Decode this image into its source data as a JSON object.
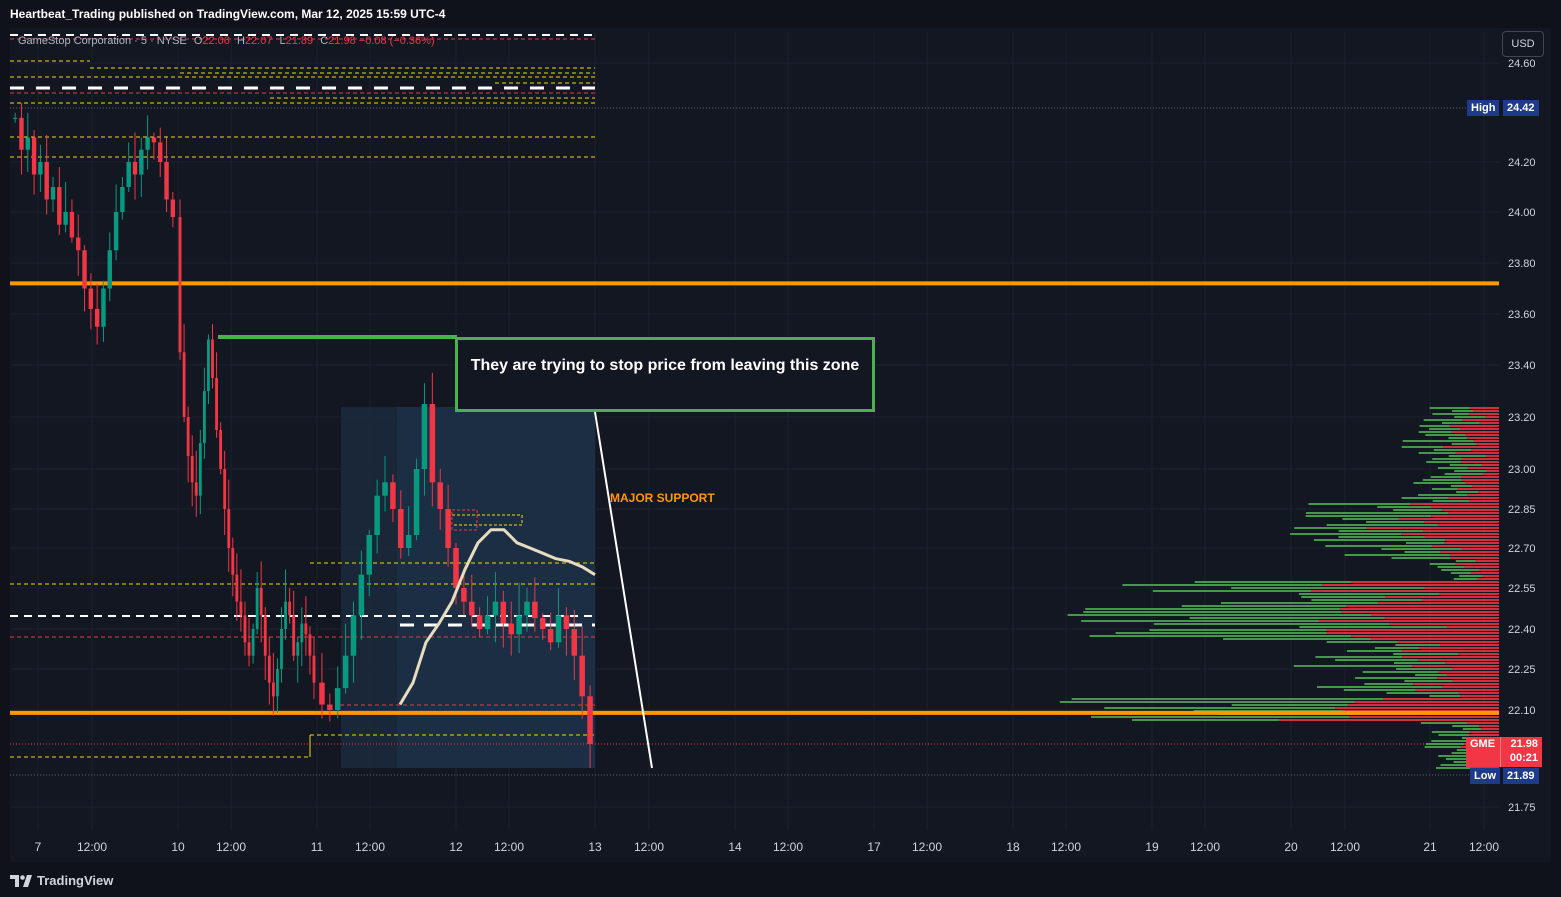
{
  "header": {
    "publisher": "Heartbeat_Trading published on TradingView.com, Mar 12, 2025 15:59 UTC-4"
  },
  "legend": {
    "symbol": "GameStop Corporation · 5 · NYSE",
    "o_label": "O",
    "o_value": "22.06",
    "h_label": "H",
    "h_value": "22.07",
    "l_label": "L",
    "l_value": "21.89",
    "c_label": "C",
    "c_value": "21.98",
    "change": "−0.08 (−0.36%)"
  },
  "currency_button": "USD",
  "annotations": {
    "callout_text": "They are trying to stop price from leaving this zone",
    "support_label": "MAJOR SUPPORT"
  },
  "price_tags": {
    "high_label": "High",
    "high_value": "24.42",
    "low_label": "Low",
    "low_value": "21.89",
    "symbol": "GME",
    "last_price": "21.98",
    "countdown": "00:21"
  },
  "footer": {
    "brand": "TradingView"
  },
  "colors": {
    "background": "#131722",
    "up": "#089981",
    "down": "#f23645",
    "support": "#ff9800",
    "callout_border": "#4caf50",
    "vwap": "#e8dcc0",
    "level_yellow": "#f5d90a",
    "level_red": "#f23645",
    "level_white": "#ffffff"
  },
  "chart_data": {
    "type": "candlestick",
    "interval": "5",
    "y_ticks": [
      "24.60",
      "24.20",
      "24.00",
      "23.80",
      "23.60",
      "23.40",
      "23.20",
      "23.00",
      "22.85",
      "22.70",
      "22.55",
      "22.40",
      "22.25",
      "22.10",
      "21.75"
    ],
    "x_ticks": [
      "7",
      "12:00",
      "10",
      "12:00",
      "11",
      "12:00",
      "12",
      "12:00",
      "13",
      "12:00",
      "14",
      "12:00",
      "17",
      "12:00",
      "18",
      "12:00",
      "19",
      "12:00",
      "20",
      "12:00",
      "21",
      "12:00"
    ],
    "horizontal_levels": {
      "major_support": 22.09,
      "upper_resistance": 23.72,
      "green_box_top": 23.51,
      "high": 24.42,
      "low": 21.89,
      "last": 21.98
    },
    "close_path": [
      24.38,
      24.25,
      24.3,
      24.15,
      24.2,
      24.05,
      24.1,
      23.95,
      24.0,
      23.9,
      23.85,
      23.7,
      23.62,
      23.55,
      23.7,
      23.85,
      24.0,
      24.1,
      24.2,
      24.15,
      24.25,
      24.3,
      24.28,
      24.2,
      24.05,
      23.98,
      23.45,
      23.2,
      23.05,
      22.95,
      22.9,
      23.1,
      23.3,
      23.5,
      23.35,
      23.15,
      23.0,
      22.85,
      22.7,
      22.6,
      22.5,
      22.45,
      22.35,
      22.3,
      22.4,
      22.55,
      22.45,
      22.3,
      22.2,
      22.15,
      22.25,
      22.4,
      22.5,
      22.45,
      22.3,
      22.35,
      22.42,
      22.38,
      22.3,
      22.2,
      22.12,
      22.1,
      22.18,
      22.3,
      22.45,
      22.6,
      22.75,
      22.9,
      22.95,
      22.85,
      22.7,
      22.75,
      23.0,
      23.25,
      22.95,
      22.85,
      22.7,
      22.55,
      22.5,
      22.45,
      22.4,
      22.45,
      22.5,
      22.42,
      22.38,
      22.45,
      22.5,
      22.44,
      22.4,
      22.35,
      22.45,
      22.4,
      22.3,
      22.15,
      21.98
    ],
    "vwap": [
      22.12,
      22.2,
      22.35,
      22.42,
      22.5,
      22.62,
      22.72,
      22.77,
      22.77,
      22.72,
      22.7,
      22.68,
      22.66,
      22.65,
      22.63,
      22.6
    ]
  }
}
